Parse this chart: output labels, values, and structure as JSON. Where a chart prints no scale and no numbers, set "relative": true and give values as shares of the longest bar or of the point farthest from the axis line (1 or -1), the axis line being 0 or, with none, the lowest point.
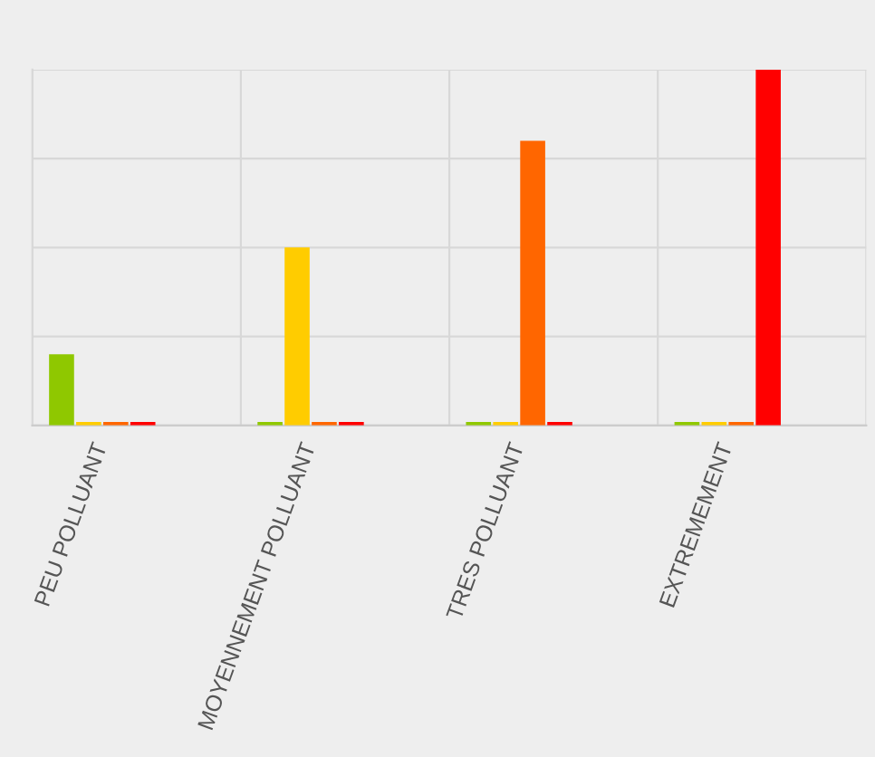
{
  "chart_data": {
    "type": "bar",
    "relative": true,
    "grid": true,
    "categories": [
      "PEU POLLUANT",
      "MOYENNEMENT POLLUANT",
      "TRES POLLUANT",
      "EXTREMEMENT"
    ],
    "series": [
      {
        "color": "#8fc800",
        "values": [
          0.2,
          0.01,
          0.01,
          0.01
        ]
      },
      {
        "color": "#ffcc00",
        "values": [
          0.01,
          0.5,
          0.01,
          0.01
        ]
      },
      {
        "color": "#ff6600",
        "values": [
          0.01,
          0.01,
          0.8,
          0.01
        ]
      },
      {
        "color": "#ff0000",
        "values": [
          0.01,
          0.01,
          0.01,
          1
        ]
      }
    ]
  }
}
